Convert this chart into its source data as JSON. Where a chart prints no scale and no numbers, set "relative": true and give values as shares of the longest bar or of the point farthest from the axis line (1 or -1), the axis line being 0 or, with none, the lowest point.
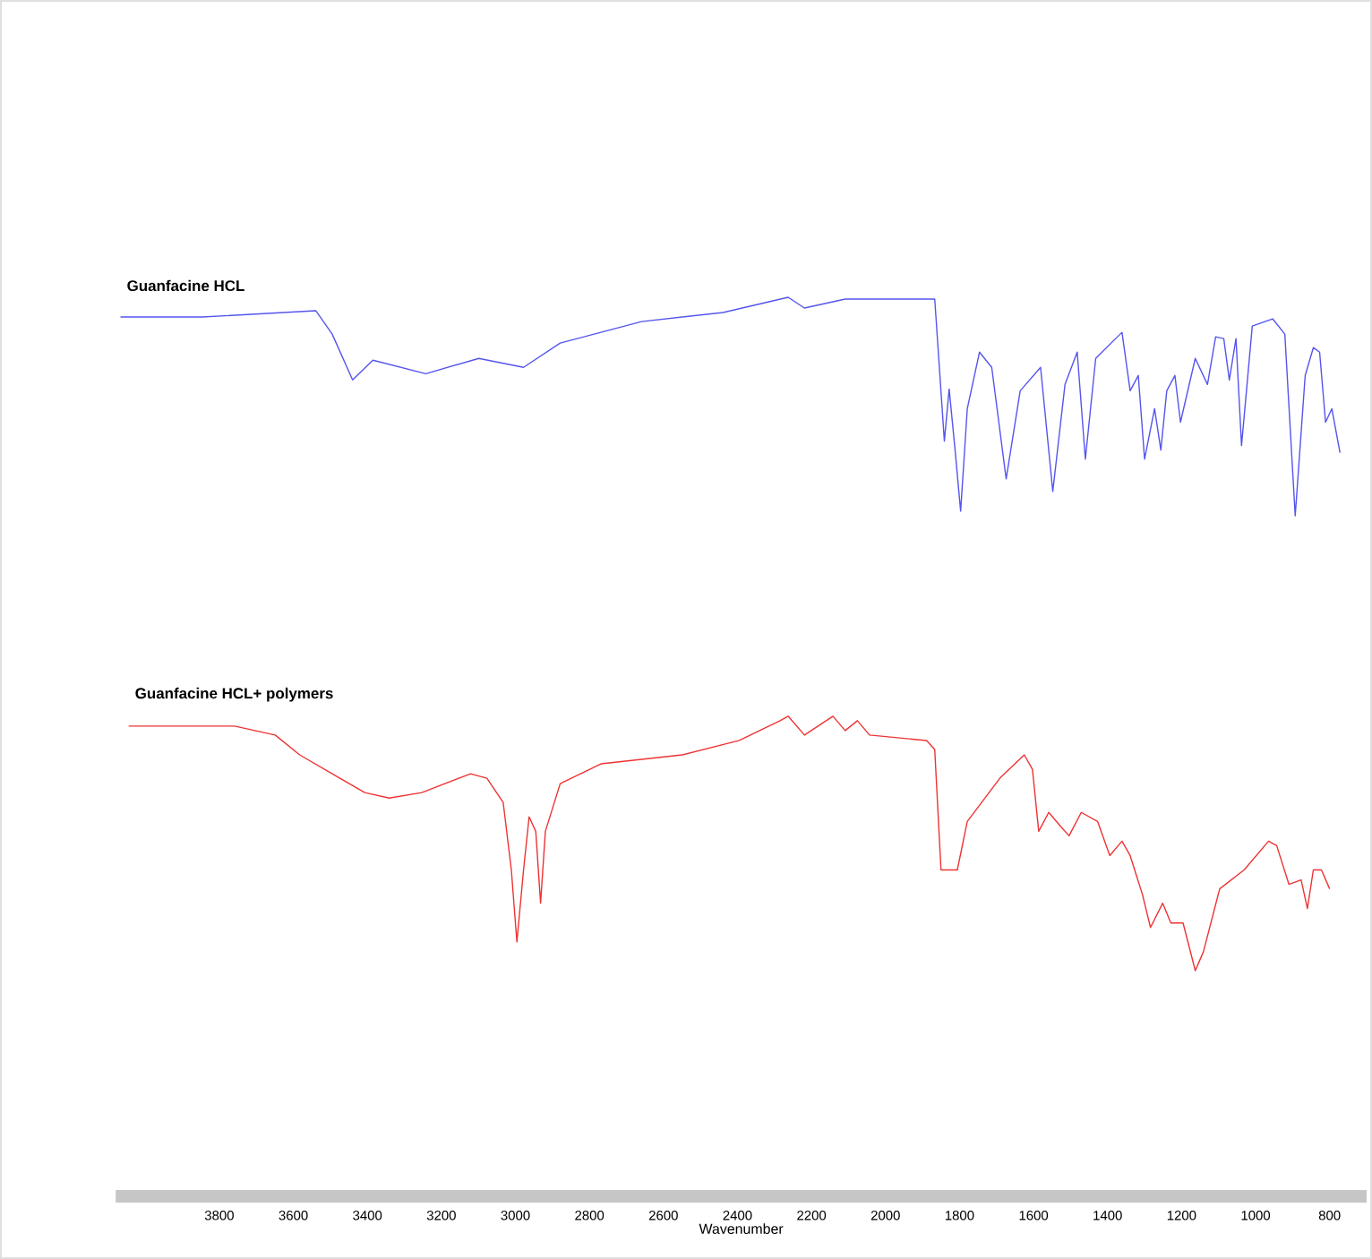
{
  "chart_data": {
    "type": "line",
    "xlabel": "Wavenumber",
    "relative": true,
    "xlim": [
      4080,
      700
    ],
    "xticks": [
      3800,
      3600,
      3400,
      3200,
      3000,
      2800,
      2600,
      2400,
      2200,
      2000,
      1800,
      1600,
      1400,
      1200,
      1000,
      800
    ],
    "series": [
      {
        "name": "Guanfacine HCL",
        "color": "#5555ee",
        "x": [
          4067,
          3847,
          3539,
          3495,
          3440,
          3385,
          3242,
          3099,
          2978,
          2879,
          2659,
          2439,
          2263,
          2219,
          2109,
          1867,
          1841,
          1828,
          1812,
          1797,
          1779,
          1746,
          1713,
          1674,
          1636,
          1581,
          1548,
          1515,
          1482,
          1460,
          1432,
          1361,
          1339,
          1317,
          1300,
          1273,
          1256,
          1240,
          1218,
          1203,
          1163,
          1130,
          1108,
          1086,
          1071,
          1053,
          1038,
          1009,
          954,
          921,
          893,
          866,
          844,
          827,
          811,
          794,
          772
        ],
        "values": [
          0.978,
          0.978,
          0.985,
          0.959,
          0.908,
          0.93,
          0.915,
          0.932,
          0.922,
          0.949,
          0.973,
          0.983,
          1,
          0.988,
          0.998,
          0.998,
          0.84,
          0.898,
          0.83,
          0.762,
          0.876,
          0.939,
          0.922,
          0.798,
          0.896,
          0.922,
          0.784,
          0.903,
          0.939,
          0.82,
          0.932,
          0.961,
          0.896,
          0.913,
          0.82,
          0.876,
          0.83,
          0.896,
          0.913,
          0.861,
          0.932,
          0.903,
          0.956,
          0.954,
          0.908,
          0.954,
          0.835,
          0.968,
          0.976,
          0.959,
          0.757,
          0.913,
          0.944,
          0.939,
          0.861,
          0.876,
          0.827
        ]
      },
      {
        "name": "Guanfacine HCL+ polymers",
        "color": "#ee3333",
        "x": [
          4045,
          3759,
          3649,
          3583,
          3495,
          3407,
          3341,
          3253,
          3121,
          3077,
          3033,
          3011,
          2996,
          2978,
          2963,
          2945,
          2932,
          2919,
          2879,
          2769,
          2549,
          2395,
          2285,
          2263,
          2219,
          2142,
          2109,
          2076,
          2043,
          1889,
          1867,
          1850,
          1828,
          1806,
          1779,
          1691,
          1625,
          1603,
          1586,
          1559,
          1526,
          1504,
          1471,
          1427,
          1394,
          1361,
          1339,
          1306,
          1284,
          1251,
          1229,
          1196,
          1163,
          1141,
          1097,
          1031,
          965,
          943,
          910,
          877,
          860,
          844,
          822,
          800
        ],
        "values": [
          0.523,
          0.523,
          0.513,
          0.491,
          0.47,
          0.449,
          0.443,
          0.449,
          0.47,
          0.465,
          0.438,
          0.363,
          0.283,
          0.363,
          0.422,
          0.406,
          0.326,
          0.406,
          0.459,
          0.481,
          0.491,
          0.507,
          0.529,
          0.534,
          0.513,
          0.534,
          0.518,
          0.529,
          0.513,
          0.507,
          0.497,
          0.363,
          0.363,
          0.363,
          0.417,
          0.465,
          0.491,
          0.475,
          0.406,
          0.427,
          0.411,
          0.401,
          0.427,
          0.417,
          0.379,
          0.395,
          0.379,
          0.336,
          0.299,
          0.326,
          0.304,
          0.304,
          0.251,
          0.272,
          0.342,
          0.363,
          0.395,
          0.39,
          0.347,
          0.352,
          0.32,
          0.363,
          0.363,
          0.342
        ]
      }
    ]
  }
}
